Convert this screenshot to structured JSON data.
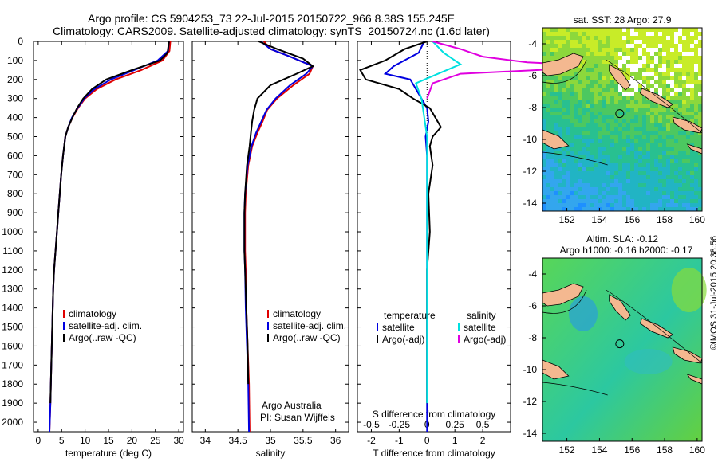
{
  "header": {
    "title_line1": "Argo profile: CS 5904253_73 22-Jul-2015 20150722_966 8.38S 155.245E",
    "title_line2": "Climatology: CARS2009. Satellite-adjusted climatology: synTS_20150724.nc (1.6d later)"
  },
  "colors": {
    "climatology": "#e00000",
    "satellite": "#0000e0",
    "argo": "#000000",
    "satellite_salinity": "#00e0e0",
    "argo_salinity": "#e000e0"
  },
  "depth_axis": {
    "ylim": [
      0,
      2050
    ],
    "ticks": [
      0,
      100,
      200,
      300,
      400,
      500,
      600,
      700,
      800,
      900,
      1000,
      1100,
      1200,
      1300,
      1400,
      1500,
      1600,
      1700,
      1800,
      1900,
      2000
    ]
  },
  "chart_data": [
    {
      "type": "line",
      "xlabel": "temperature (deg C)",
      "xlim": [
        -1,
        31
      ],
      "xticks": [
        0,
        5,
        10,
        15,
        20,
        25,
        30
      ],
      "legend": [
        "climatology",
        "satellite-adj. clim.",
        "Argo(..raw -QC)"
      ],
      "series": [
        {
          "name": "climatology",
          "color": "#e00000",
          "x": [
            28.2,
            28.0,
            26.5,
            22.0,
            16.5,
            12.5,
            10.0,
            8.5,
            7.3,
            6.4,
            5.8,
            5.3,
            4.9,
            4.6,
            4.3,
            4.0,
            3.7,
            3.4,
            3.2,
            3.0,
            2.8,
            2.6,
            2.4
          ],
          "y": [
            0,
            50,
            100,
            150,
            200,
            250,
            300,
            350,
            400,
            450,
            500,
            600,
            700,
            800,
            900,
            1000,
            1100,
            1200,
            1300,
            1500,
            1700,
            1900,
            2050
          ]
        },
        {
          "name": "satellite-adj. clim.",
          "color": "#0000e0",
          "x": [
            27.9,
            27.7,
            25.5,
            20.5,
            15.5,
            12.0,
            9.8,
            8.4,
            7.2,
            6.4,
            5.8,
            5.3,
            4.9,
            4.6,
            4.3,
            4.0,
            3.7,
            3.4,
            3.2,
            3.0,
            2.8,
            2.6,
            2.4
          ],
          "y": [
            0,
            50,
            100,
            150,
            200,
            250,
            300,
            350,
            400,
            450,
            500,
            600,
            700,
            800,
            900,
            1000,
            1100,
            1200,
            1300,
            1500,
            1700,
            1900,
            2050
          ]
        },
        {
          "name": "Argo(..raw -QC)",
          "color": "#000000",
          "x": [
            27.9,
            27.6,
            26.0,
            20.0,
            14.5,
            11.5,
            9.6,
            8.3,
            7.3,
            6.4,
            5.8,
            5.3,
            4.9,
            4.6,
            4.3,
            4.0,
            3.7,
            3.4,
            3.2,
            3.0,
            2.8,
            2.6
          ],
          "y": [
            0,
            60,
            100,
            150,
            200,
            250,
            300,
            350,
            400,
            450,
            500,
            600,
            700,
            800,
            900,
            1000,
            1100,
            1200,
            1300,
            1500,
            1700,
            1900
          ]
        }
      ]
    },
    {
      "type": "line",
      "xlabel": "salinity",
      "xlim": [
        33.8,
        36.2
      ],
      "xticks": [
        34,
        34.5,
        35,
        35.5,
        36
      ],
      "legend": [
        "climatology",
        "satellite-adj. clim.",
        "Argo(..raw -QC)"
      ],
      "annotation": [
        "Argo Australia",
        "PI: Susan Wijffels"
      ],
      "series": [
        {
          "name": "climatology",
          "color": "#e00000",
          "x": [
            34.9,
            35.0,
            35.3,
            35.65,
            35.6,
            35.35,
            35.1,
            34.95,
            34.88,
            34.8,
            34.72,
            34.66,
            34.62,
            34.61,
            34.61,
            34.61,
            34.62,
            34.63,
            34.65,
            34.67,
            34.68
          ],
          "y": [
            0,
            40,
            80,
            130,
            170,
            230,
            300,
            360,
            420,
            480,
            550,
            650,
            800,
            900,
            1000,
            1100,
            1200,
            1400,
            1600,
            1800,
            2050
          ]
        },
        {
          "name": "satellite-adj. clim.",
          "color": "#0000e0",
          "x": [
            34.85,
            35.0,
            35.3,
            35.65,
            35.55,
            35.3,
            35.08,
            34.94,
            34.86,
            34.78,
            34.71,
            34.65,
            34.61,
            34.6,
            34.6,
            34.6,
            34.61,
            34.62,
            34.64,
            34.66,
            34.67
          ],
          "y": [
            0,
            40,
            80,
            130,
            170,
            230,
            300,
            360,
            420,
            480,
            550,
            650,
            800,
            900,
            1000,
            1100,
            1200,
            1400,
            1600,
            1800,
            2050
          ]
        },
        {
          "name": "Argo(..raw -QC)",
          "color": "#000000",
          "x": [
            34.82,
            35.1,
            35.5,
            35.65,
            35.4,
            35.0,
            34.8,
            34.75,
            34.72,
            34.7,
            34.68,
            34.64,
            34.61,
            34.6,
            34.6,
            34.6,
            34.61,
            34.63,
            34.65,
            34.66
          ],
          "y": [
            0,
            40,
            90,
            130,
            170,
            230,
            300,
            360,
            420,
            480,
            550,
            650,
            800,
            900,
            1000,
            1100,
            1200,
            1400,
            1600,
            1800
          ]
        }
      ]
    },
    {
      "type": "line",
      "xlabel": "T difference from climatology",
      "xlabel_top": "S difference from climatology",
      "xlim": [
        -2.5,
        3
      ],
      "xticks": [
        -2,
        -1,
        0,
        1,
        2
      ],
      "s_ticks": [
        -0.5,
        -0.25,
        0,
        0.25,
        0.5
      ],
      "legend_temperature_title": "temperature",
      "legend_salinity_title": "salinity",
      "legend": [
        "satellite",
        "Argo(-adj)",
        "satellite",
        "Argo(-adj)"
      ],
      "series": [
        {
          "name": "satellite",
          "color": "#0000e0",
          "group": "temperature",
          "x": [
            -0.1,
            -0.3,
            -1.2,
            -1.5,
            -0.6,
            -0.2,
            0.0,
            0.05,
            -0.05,
            0.0,
            0.0,
            0.0,
            0.0,
            0.0
          ],
          "y": [
            0,
            60,
            130,
            170,
            200,
            300,
            350,
            420,
            500,
            600,
            800,
            1000,
            1500,
            2050
          ]
        },
        {
          "name": "Argo(-adj)",
          "color": "#000000",
          "group": "temperature",
          "x": [
            0.0,
            -0.8,
            -1.5,
            -2.4,
            -2.2,
            -1.0,
            -0.5,
            0.1,
            0.5,
            0.2,
            0.1,
            0.2,
            0.05,
            0.1,
            0.0,
            0.0,
            0.0
          ],
          "y": [
            0,
            40,
            100,
            150,
            200,
            250,
            300,
            350,
            450,
            500,
            550,
            650,
            800,
            1000,
            1200,
            1500,
            1900
          ]
        },
        {
          "name": "satellite",
          "color": "#00e0e0",
          "group": "salinity",
          "x": [
            0.05,
            0.15,
            0.3,
            0.1,
            -0.1,
            -0.05,
            0.0,
            0.0,
            0.0,
            0.0
          ],
          "y": [
            0,
            60,
            120,
            170,
            220,
            300,
            500,
            800,
            1500,
            1900
          ]
        },
        {
          "name": "Argo(-adj)",
          "color": "#e000e0",
          "group": "salinity",
          "x": [
            0.05,
            0.3,
            0.5,
            0.9,
            1.6,
            1.0,
            0.3,
            0.05,
            0.0
          ],
          "y": [
            0,
            40,
            80,
            110,
            130,
            150,
            170,
            220,
            300
          ]
        }
      ]
    }
  ],
  "maps": [
    {
      "title": "sat. SST: 28 Argo: 27.9",
      "xticks": [
        "152",
        "154",
        "156",
        "158",
        "160"
      ],
      "yticks": [
        "-4",
        "-6",
        "-8",
        "-10",
        "-12",
        "-14"
      ],
      "palette": [
        "#1e90ff",
        "#33a6ee",
        "#21b4c4",
        "#28c090",
        "#4cc860",
        "#8cd83c",
        "#c8ec28"
      ]
    },
    {
      "title_line1": "Altim. SLA: -0.12",
      "title_line2": "Argo h1000: -0.16 h2000: -0.17",
      "xticks": [
        "152",
        "154",
        "156",
        "158",
        "160"
      ],
      "yticks": [
        "-4",
        "-6",
        "-8",
        "-10",
        "-12",
        "-14"
      ]
    }
  ],
  "footer": {
    "stamp": "©IMOS 31-Jul-2015 20:38:56"
  }
}
